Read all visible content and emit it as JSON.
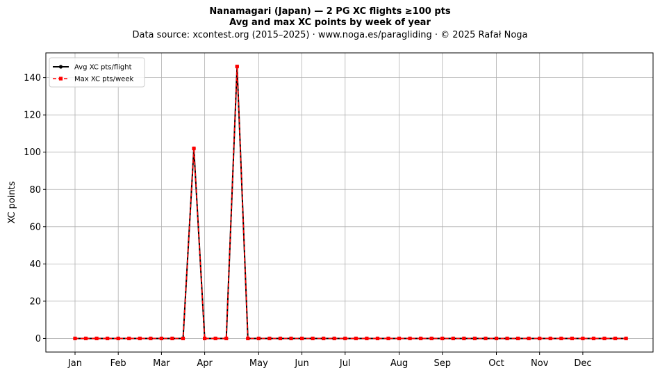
{
  "title": "Nanamagari (Japan)  —  2 PG XC flights ≥100 pts",
  "subtitle": "Avg and max XC points by week of year",
  "source_line": "Data source: xcontest.org (2015–2025)  ·  www.noga.es/paragliding  ·  © 2025 Rafał Noga",
  "colors": {
    "avg": "#000000",
    "max": "#ff0000",
    "grid": "#b0b0b0",
    "axes": "#000000"
  },
  "chart_data": {
    "type": "line",
    "title": "Nanamagari (Japan)  —  2 PG XC flights ≥100 pts",
    "subtitle": "Avg and max XC points by week of year",
    "xlabel": "",
    "ylabel": "XC points",
    "x": [
      1,
      2,
      3,
      4,
      5,
      6,
      7,
      8,
      9,
      10,
      11,
      12,
      13,
      14,
      15,
      16,
      17,
      18,
      19,
      20,
      21,
      22,
      23,
      24,
      25,
      26,
      27,
      28,
      29,
      30,
      31,
      32,
      33,
      34,
      35,
      36,
      37,
      38,
      39,
      40,
      41,
      42,
      43,
      44,
      45,
      46,
      47,
      48,
      49,
      50,
      51,
      52
    ],
    "month_ticks": [
      {
        "label": "Jan",
        "week": 1
      },
      {
        "label": "Feb",
        "week": 5
      },
      {
        "label": "Mar",
        "week": 9
      },
      {
        "label": "Apr",
        "week": 13
      },
      {
        "label": "May",
        "week": 18
      },
      {
        "label": "Jun",
        "week": 22
      },
      {
        "label": "Jul",
        "week": 26
      },
      {
        "label": "Aug",
        "week": 31
      },
      {
        "label": "Sep",
        "week": 35
      },
      {
        "label": "Oct",
        "week": 40
      },
      {
        "label": "Nov",
        "week": 44
      },
      {
        "label": "Dec",
        "week": 48
      }
    ],
    "xlim": [
      -1.7,
      54.5
    ],
    "ylim": [
      -7.3,
      153.3
    ],
    "yticks": [
      0,
      20,
      40,
      60,
      80,
      100,
      120,
      140
    ],
    "grid": true,
    "legend_position": "top-left",
    "series": [
      {
        "name": "Avg XC pts/flight",
        "style": "solid-circle",
        "color": "#000000",
        "values": [
          0,
          0,
          0,
          0,
          0,
          0,
          0,
          0,
          0,
          0,
          0,
          102,
          0,
          0,
          0,
          146,
          0,
          0,
          0,
          0,
          0,
          0,
          0,
          0,
          0,
          0,
          0,
          0,
          0,
          0,
          0,
          0,
          0,
          0,
          0,
          0,
          0,
          0,
          0,
          0,
          0,
          0,
          0,
          0,
          0,
          0,
          0,
          0,
          0,
          0,
          0,
          0
        ]
      },
      {
        "name": "Max XC pts/week",
        "style": "dashed-square",
        "color": "#ff0000",
        "values": [
          0,
          0,
          0,
          0,
          0,
          0,
          0,
          0,
          0,
          0,
          0,
          102,
          0,
          0,
          0,
          146,
          0,
          0,
          0,
          0,
          0,
          0,
          0,
          0,
          0,
          0,
          0,
          0,
          0,
          0,
          0,
          0,
          0,
          0,
          0,
          0,
          0,
          0,
          0,
          0,
          0,
          0,
          0,
          0,
          0,
          0,
          0,
          0,
          0,
          0,
          0,
          0
        ]
      }
    ]
  }
}
